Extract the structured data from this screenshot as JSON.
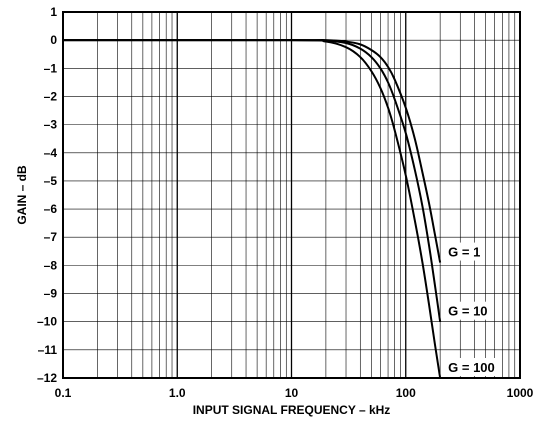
{
  "chart_data": {
    "type": "line",
    "xlabel": "INPUT SIGNAL FREQUENCY – kHz",
    "ylabel": "GAIN – dB",
    "xscale": "log",
    "xlim": [
      0.1,
      1000
    ],
    "ylim": [
      -12,
      1
    ],
    "grid": true,
    "x_ticks": [
      "0.1",
      "1.0",
      "10",
      "100",
      "1000"
    ],
    "y_ticks": [
      "1",
      "0",
      "–1",
      "–2",
      "–3",
      "–4",
      "–5",
      "–6",
      "–7",
      "–8",
      "–9",
      "–10",
      "–11",
      "–12"
    ],
    "series": [
      {
        "name": "G = 1",
        "x": [
          0.1,
          10,
          20,
          30,
          40,
          50,
          60,
          70,
          80,
          100,
          120,
          140,
          160,
          180,
          200
        ],
        "y": [
          0,
          0,
          0,
          -0.05,
          -0.15,
          -0.35,
          -0.6,
          -0.95,
          -1.4,
          -2.4,
          -3.5,
          -4.7,
          -5.8,
          -6.9,
          -7.9
        ]
      },
      {
        "name": "G = 10",
        "x": [
          0.1,
          10,
          20,
          30,
          40,
          50,
          60,
          70,
          80,
          100,
          120,
          140,
          160,
          180,
          200
        ],
        "y": [
          0,
          0,
          -0.02,
          -0.1,
          -0.3,
          -0.6,
          -1.0,
          -1.5,
          -2.1,
          -3.3,
          -4.6,
          -5.9,
          -7.3,
          -8.7,
          -10.0
        ]
      },
      {
        "name": "G = 100",
        "x": [
          0.1,
          10,
          20,
          30,
          40,
          50,
          60,
          70,
          80,
          100,
          120,
          140,
          160,
          180,
          200
        ],
        "y": [
          0,
          0,
          -0.05,
          -0.25,
          -0.6,
          -1.1,
          -1.7,
          -2.4,
          -3.2,
          -4.8,
          -6.4,
          -7.9,
          -9.4,
          -10.8,
          -12.0
        ]
      }
    ]
  }
}
